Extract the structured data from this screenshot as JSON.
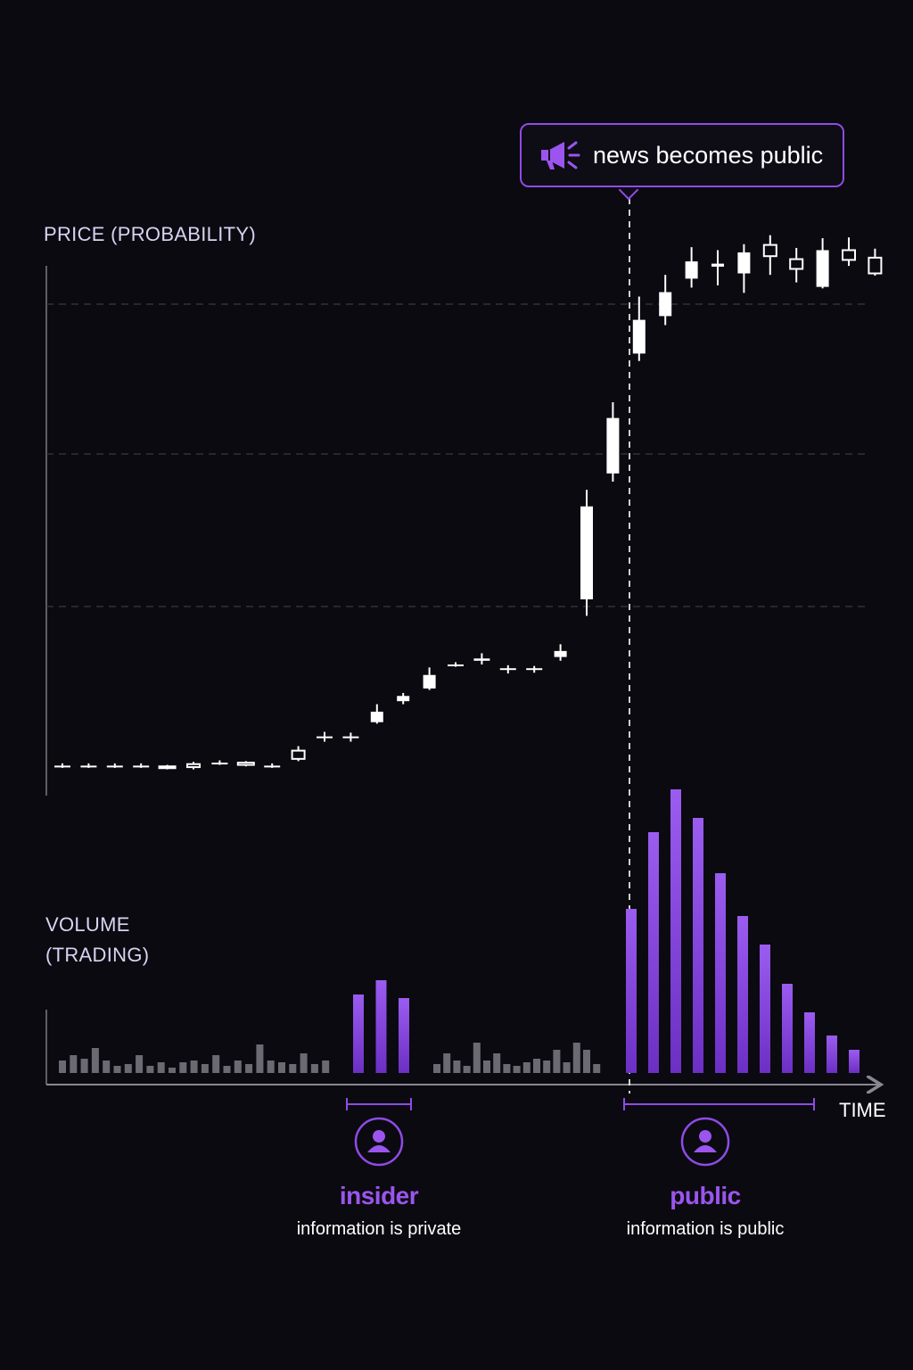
{
  "chart_data": {
    "type": "candlestick+bar",
    "price_axis_label": "PRICE (PROBABILITY)",
    "volume_axis_label_lines": [
      "VOLUME",
      "(TRADING)"
    ],
    "x_axis_label": "TIME",
    "grid": true,
    "price_scale": [
      0,
      100
    ],
    "candles": [
      {
        "open": 40,
        "close": 40,
        "high": 43,
        "low": 37
      },
      {
        "open": 40,
        "close": 40,
        "high": 43,
        "low": 37
      },
      {
        "open": 40,
        "close": 40,
        "high": 43,
        "low": 37
      },
      {
        "open": 40,
        "close": 40,
        "high": 43,
        "low": 37
      },
      {
        "open": 39,
        "close": 38,
        "high": 41,
        "low": 35
      },
      {
        "open": 42,
        "close": 38,
        "high": 45,
        "low": 35
      },
      {
        "open": 44,
        "close": 44,
        "high": 47,
        "low": 41
      },
      {
        "open": 44,
        "close": 41,
        "high": 46,
        "low": 39
      },
      {
        "open": 40,
        "close": 40,
        "high": 43,
        "low": 37
      },
      {
        "open": 60,
        "close": 49,
        "high": 66,
        "low": 46
      },
      {
        "open": 77,
        "close": 79,
        "high": 85,
        "low": 72
      },
      {
        "open": 77,
        "close": 79,
        "high": 84,
        "low": 72
      },
      {
        "open": 98,
        "close": 112,
        "high": 122,
        "low": 96
      },
      {
        "open": 126,
        "close": 133,
        "high": 137,
        "low": 122
      },
      {
        "open": 143,
        "close": 161,
        "high": 171,
        "low": 141
      },
      {
        "open": 175,
        "close": 175,
        "high": 178,
        "low": 172
      },
      {
        "open": 180,
        "close": 183,
        "high": 190,
        "low": 175
      },
      {
        "open": 170,
        "close": 170,
        "high": 174,
        "low": 163
      },
      {
        "open": 170,
        "close": 170,
        "high": 173,
        "low": 164
      },
      {
        "open": 185,
        "close": 193,
        "high": 202,
        "low": 180
      },
      {
        "open": 262,
        "close": 386,
        "high": 408,
        "low": 240
      },
      {
        "open": 430,
        "close": 504,
        "high": 525,
        "low": 419
      },
      {
        "open": 590,
        "close": 635,
        "high": 666,
        "low": 580
      },
      {
        "open": 640,
        "close": 672,
        "high": 695,
        "low": 628
      },
      {
        "open": 690,
        "close": 713,
        "high": 732,
        "low": 678
      },
      {
        "open": 706,
        "close": 710,
        "high": 728,
        "low": 681
      },
      {
        "open": 697,
        "close": 725,
        "high": 736,
        "low": 671
      },
      {
        "open": 735,
        "close": 720,
        "high": 748,
        "low": 695
      },
      {
        "open": 716,
        "close": 703,
        "high": 731,
        "low": 685
      },
      {
        "open": 679,
        "close": 728,
        "high": 744,
        "low": 677
      },
      {
        "open": 728,
        "close": 715,
        "high": 745,
        "low": 707
      },
      {
        "open": 718,
        "close": 697,
        "high": 730,
        "low": 694
      }
    ],
    "volume_background": [
      14,
      20,
      16,
      28,
      14,
      8,
      10,
      20,
      8,
      12,
      6,
      12,
      14,
      10,
      20,
      8,
      14,
      10,
      32,
      14,
      12,
      10,
      22,
      10,
      14
    ],
    "volume_background_2": [
      10,
      22,
      14,
      8,
      34,
      14,
      22,
      10,
      8,
      12,
      16,
      14,
      26,
      12,
      34,
      26,
      10
    ],
    "volume_insider": [
      88,
      104,
      84
    ],
    "volume_public": [
      184,
      270,
      318,
      286,
      224,
      176,
      144,
      100,
      68,
      42,
      26
    ],
    "event": {
      "label": "news becomes public",
      "icon": "megaphone-icon"
    },
    "phases": [
      {
        "title": "insider",
        "description": "information is private",
        "icon": "person-icon"
      },
      {
        "title": "public",
        "description": "information is public",
        "icon": "person-icon"
      }
    ],
    "colors": {
      "background": "#0b0a10",
      "accent": "#8e4be6",
      "candle": "#ffffff",
      "volume_neutral": "#6b6a73"
    }
  }
}
